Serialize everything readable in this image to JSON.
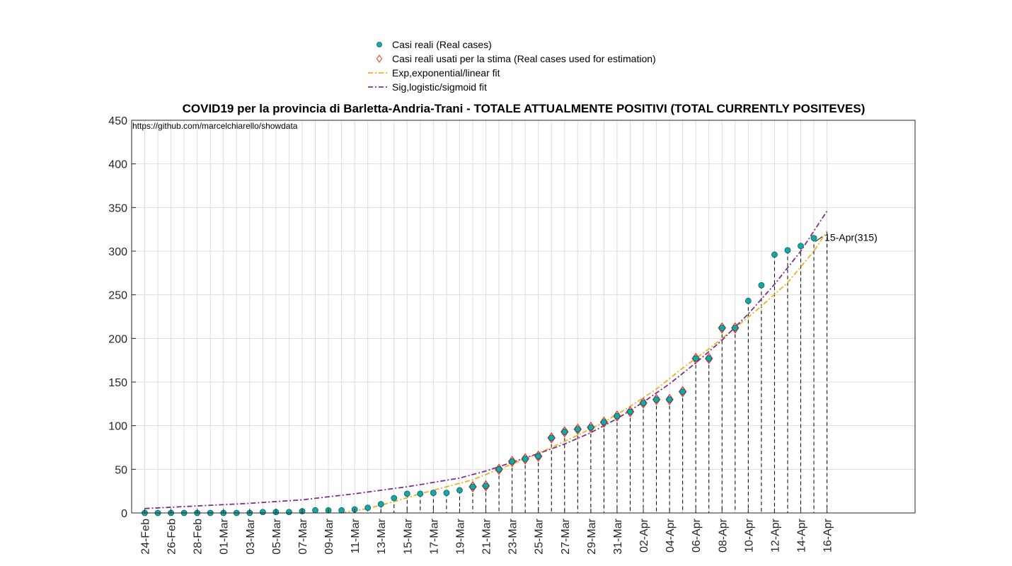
{
  "chart_data": {
    "type": "scatter",
    "title": "COVID19 per la provincia di Barletta-Andria-Trani - TOTALE ATTUALMENTE POSITIVI (TOTAL CURRENTLY POSITEVES)",
    "source_note": "https://github.com/marcelchiarello/showdata",
    "xlabel": "",
    "ylabel": "",
    "ylim": [
      0,
      450
    ],
    "yticks": [
      0,
      50,
      100,
      150,
      200,
      250,
      300,
      350,
      400,
      450
    ],
    "grid": true,
    "legend_position": "top-center",
    "dates": [
      "24-Feb",
      "25-Feb",
      "26-Feb",
      "27-Feb",
      "28-Feb",
      "29-Feb",
      "01-Mar",
      "02-Mar",
      "03-Mar",
      "04-Mar",
      "05-Mar",
      "06-Mar",
      "07-Mar",
      "08-Mar",
      "09-Mar",
      "10-Mar",
      "11-Mar",
      "12-Mar",
      "13-Mar",
      "14-Mar",
      "15-Mar",
      "16-Mar",
      "17-Mar",
      "18-Mar",
      "19-Mar",
      "20-Mar",
      "21-Mar",
      "22-Mar",
      "23-Mar",
      "24-Mar",
      "25-Mar",
      "26-Mar",
      "27-Mar",
      "28-Mar",
      "29-Mar",
      "30-Mar",
      "31-Mar",
      "01-Apr",
      "02-Apr",
      "03-Apr",
      "04-Apr",
      "05-Apr",
      "06-Apr",
      "07-Apr",
      "08-Apr",
      "09-Apr",
      "10-Apr",
      "11-Apr",
      "12-Apr",
      "13-Apr",
      "14-Apr",
      "15-Apr",
      "16-Apr"
    ],
    "xtick_labels": [
      "24-Feb",
      "26-Feb",
      "28-Feb",
      "01-Mar",
      "03-Mar",
      "05-Mar",
      "07-Mar",
      "09-Mar",
      "11-Mar",
      "13-Mar",
      "15-Mar",
      "17-Mar",
      "19-Mar",
      "21-Mar",
      "23-Mar",
      "25-Mar",
      "27-Mar",
      "29-Mar",
      "31-Mar",
      "02-Apr",
      "04-Apr",
      "06-Apr",
      "08-Apr",
      "10-Apr",
      "12-Apr",
      "14-Apr",
      "16-Apr"
    ],
    "series": [
      {
        "name": "Casi reali (Real cases)",
        "color": "#17a5a5",
        "marker": "circle",
        "values": [
          0,
          0,
          0,
          0,
          0,
          0,
          0,
          0,
          0,
          1,
          1,
          1,
          2,
          3,
          3,
          3,
          4,
          6,
          10,
          17,
          22,
          22,
          23,
          23,
          26,
          30,
          31,
          50,
          59,
          62,
          65,
          86,
          93,
          96,
          98,
          104,
          111,
          116,
          126,
          130,
          130,
          139,
          177,
          177,
          212,
          212,
          243,
          261,
          296,
          301,
          306,
          315
        ]
      },
      {
        "name": "Casi reali usati per la stima (Real cases used for estimation)",
        "color": "#e8321e",
        "marker": "diamond",
        "start_date": "20-Mar",
        "values": [
          30,
          31,
          50,
          59,
          62,
          65,
          86,
          93,
          96,
          98,
          104,
          111,
          116,
          126,
          130,
          130,
          139,
          177,
          177,
          212,
          212
        ]
      },
      {
        "name": "Exp,exponential/linear fit",
        "color": "#edb120",
        "style": "dash-dot",
        "x": [
          "10-Mar",
          "12-Mar",
          "14-Mar",
          "16-Mar",
          "18-Mar",
          "20-Mar",
          "22-Mar",
          "24-Mar",
          "26-Mar",
          "28-Mar",
          "30-Mar",
          "01-Apr",
          "03-Apr",
          "05-Apr",
          "07-Apr",
          "09-Apr",
          "11-Apr",
          "13-Apr",
          "15-Apr",
          "16-Apr"
        ],
        "values": [
          0,
          5,
          13,
          22,
          30,
          38,
          50,
          62,
          75,
          89,
          104,
          122,
          142,
          166,
          188,
          212,
          237,
          264,
          300,
          323
        ]
      },
      {
        "name": "Sig,logistic/sigmoid fit",
        "color": "#7e2f8e",
        "style": "dash-dot",
        "x": [
          "24-Feb",
          "28-Feb",
          "03-Mar",
          "07-Mar",
          "11-Mar",
          "15-Mar",
          "19-Mar",
          "21-Mar",
          "23-Mar",
          "25-Mar",
          "27-Mar",
          "29-Mar",
          "31-Mar",
          "02-Apr",
          "04-Apr",
          "06-Apr",
          "08-Apr",
          "10-Apr",
          "12-Apr",
          "14-Apr",
          "16-Apr"
        ],
        "values": [
          5,
          8,
          11,
          15,
          22,
          30,
          40,
          48,
          58,
          68,
          79,
          92,
          108,
          127,
          148,
          172,
          198,
          228,
          262,
          300,
          346
        ]
      }
    ],
    "annotations": [
      {
        "text": "15-Apr(315)",
        "x": "15-Apr",
        "y": 315
      }
    ]
  }
}
